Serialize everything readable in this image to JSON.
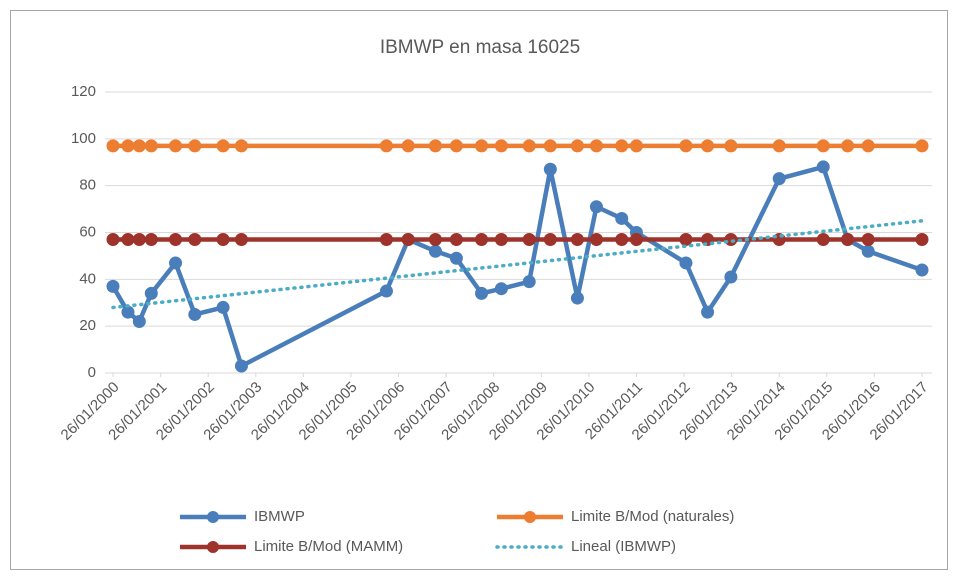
{
  "chart_data": {
    "type": "line",
    "title": "IBMWP en masa 16025",
    "x": [
      "2000-01-26",
      "2000-05-20",
      "2000-08-15",
      "2000-11-15",
      "2001-05-20",
      "2001-10-15",
      "2002-05-20",
      "2002-10-08",
      "2005-10-25",
      "2006-04-10",
      "2006-11-05",
      "2007-04-15",
      "2007-10-25",
      "2008-03-25",
      "2008-10-25",
      "2009-04-05",
      "2009-10-30",
      "2010-03-25",
      "2010-10-05",
      "2011-01-26",
      "2012-02-10",
      "2012-07-25",
      "2013-01-20",
      "2014-01-26",
      "2014-12-30",
      "2015-07-05",
      "2015-12-10",
      "2017-01-26"
    ],
    "series": [
      {
        "name": "IBMWP",
        "color": "#4a7ebb",
        "markers": true,
        "values": [
          37,
          26,
          22,
          34,
          47,
          25,
          28,
          3,
          35,
          57,
          52,
          49,
          34,
          36,
          39,
          87,
          32,
          71,
          66,
          60,
          47,
          26,
          41,
          83,
          88,
          57,
          52,
          44
        ]
      },
      {
        "name": "Limite B/Mod (naturales)",
        "color": "#ed7d31",
        "markers": true,
        "values": [
          97,
          97,
          97,
          97,
          97,
          97,
          97,
          97,
          97,
          97,
          97,
          97,
          97,
          97,
          97,
          97,
          97,
          97,
          97,
          97,
          97,
          97,
          97,
          97,
          97,
          97,
          97,
          97
        ]
      },
      {
        "name": "Limite B/Mod (MAMM)",
        "color": "#9e332b",
        "markers": true,
        "values": [
          57,
          57,
          57,
          57,
          57,
          57,
          57,
          57,
          57,
          57,
          57,
          57,
          57,
          57,
          57,
          57,
          57,
          57,
          57,
          57,
          57,
          57,
          57,
          57,
          57,
          57,
          57,
          57
        ]
      },
      {
        "name": "Lineal (IBMWP)",
        "color": "#4bacc6",
        "markers": false,
        "dotted": true,
        "x": [
          "2000-01-26",
          "2017-01-26"
        ],
        "values": [
          28,
          65
        ]
      }
    ],
    "xlim": [
      "2000-01-26",
      "2017-01-26"
    ],
    "xticks": [
      {
        "value": "2000-01-26",
        "label": "26/01/2000"
      },
      {
        "value": "2001-01-26",
        "label": "26/01/2001"
      },
      {
        "value": "2002-01-26",
        "label": "26/01/2002"
      },
      {
        "value": "2003-01-26",
        "label": "26/01/2003"
      },
      {
        "value": "2004-01-26",
        "label": "26/01/2004"
      },
      {
        "value": "2005-01-26",
        "label": "26/01/2005"
      },
      {
        "value": "2006-01-26",
        "label": "26/01/2006"
      },
      {
        "value": "2007-01-26",
        "label": "26/01/2007"
      },
      {
        "value": "2008-01-26",
        "label": "26/01/2008"
      },
      {
        "value": "2009-01-26",
        "label": "26/01/2009"
      },
      {
        "value": "2010-01-26",
        "label": "26/01/2010"
      },
      {
        "value": "2011-01-26",
        "label": "26/01/2011"
      },
      {
        "value": "2012-01-26",
        "label": "26/01/2012"
      },
      {
        "value": "2013-01-26",
        "label": "26/01/2013"
      },
      {
        "value": "2014-01-26",
        "label": "26/01/2014"
      },
      {
        "value": "2015-01-26",
        "label": "26/01/2015"
      },
      {
        "value": "2016-01-26",
        "label": "26/01/2016"
      },
      {
        "value": "2017-01-26",
        "label": "26/01/2017"
      }
    ],
    "ylim": [
      0,
      120
    ],
    "yticks": [
      0,
      20,
      40,
      60,
      80,
      100,
      120
    ],
    "grid": true,
    "legend": "bottom"
  }
}
